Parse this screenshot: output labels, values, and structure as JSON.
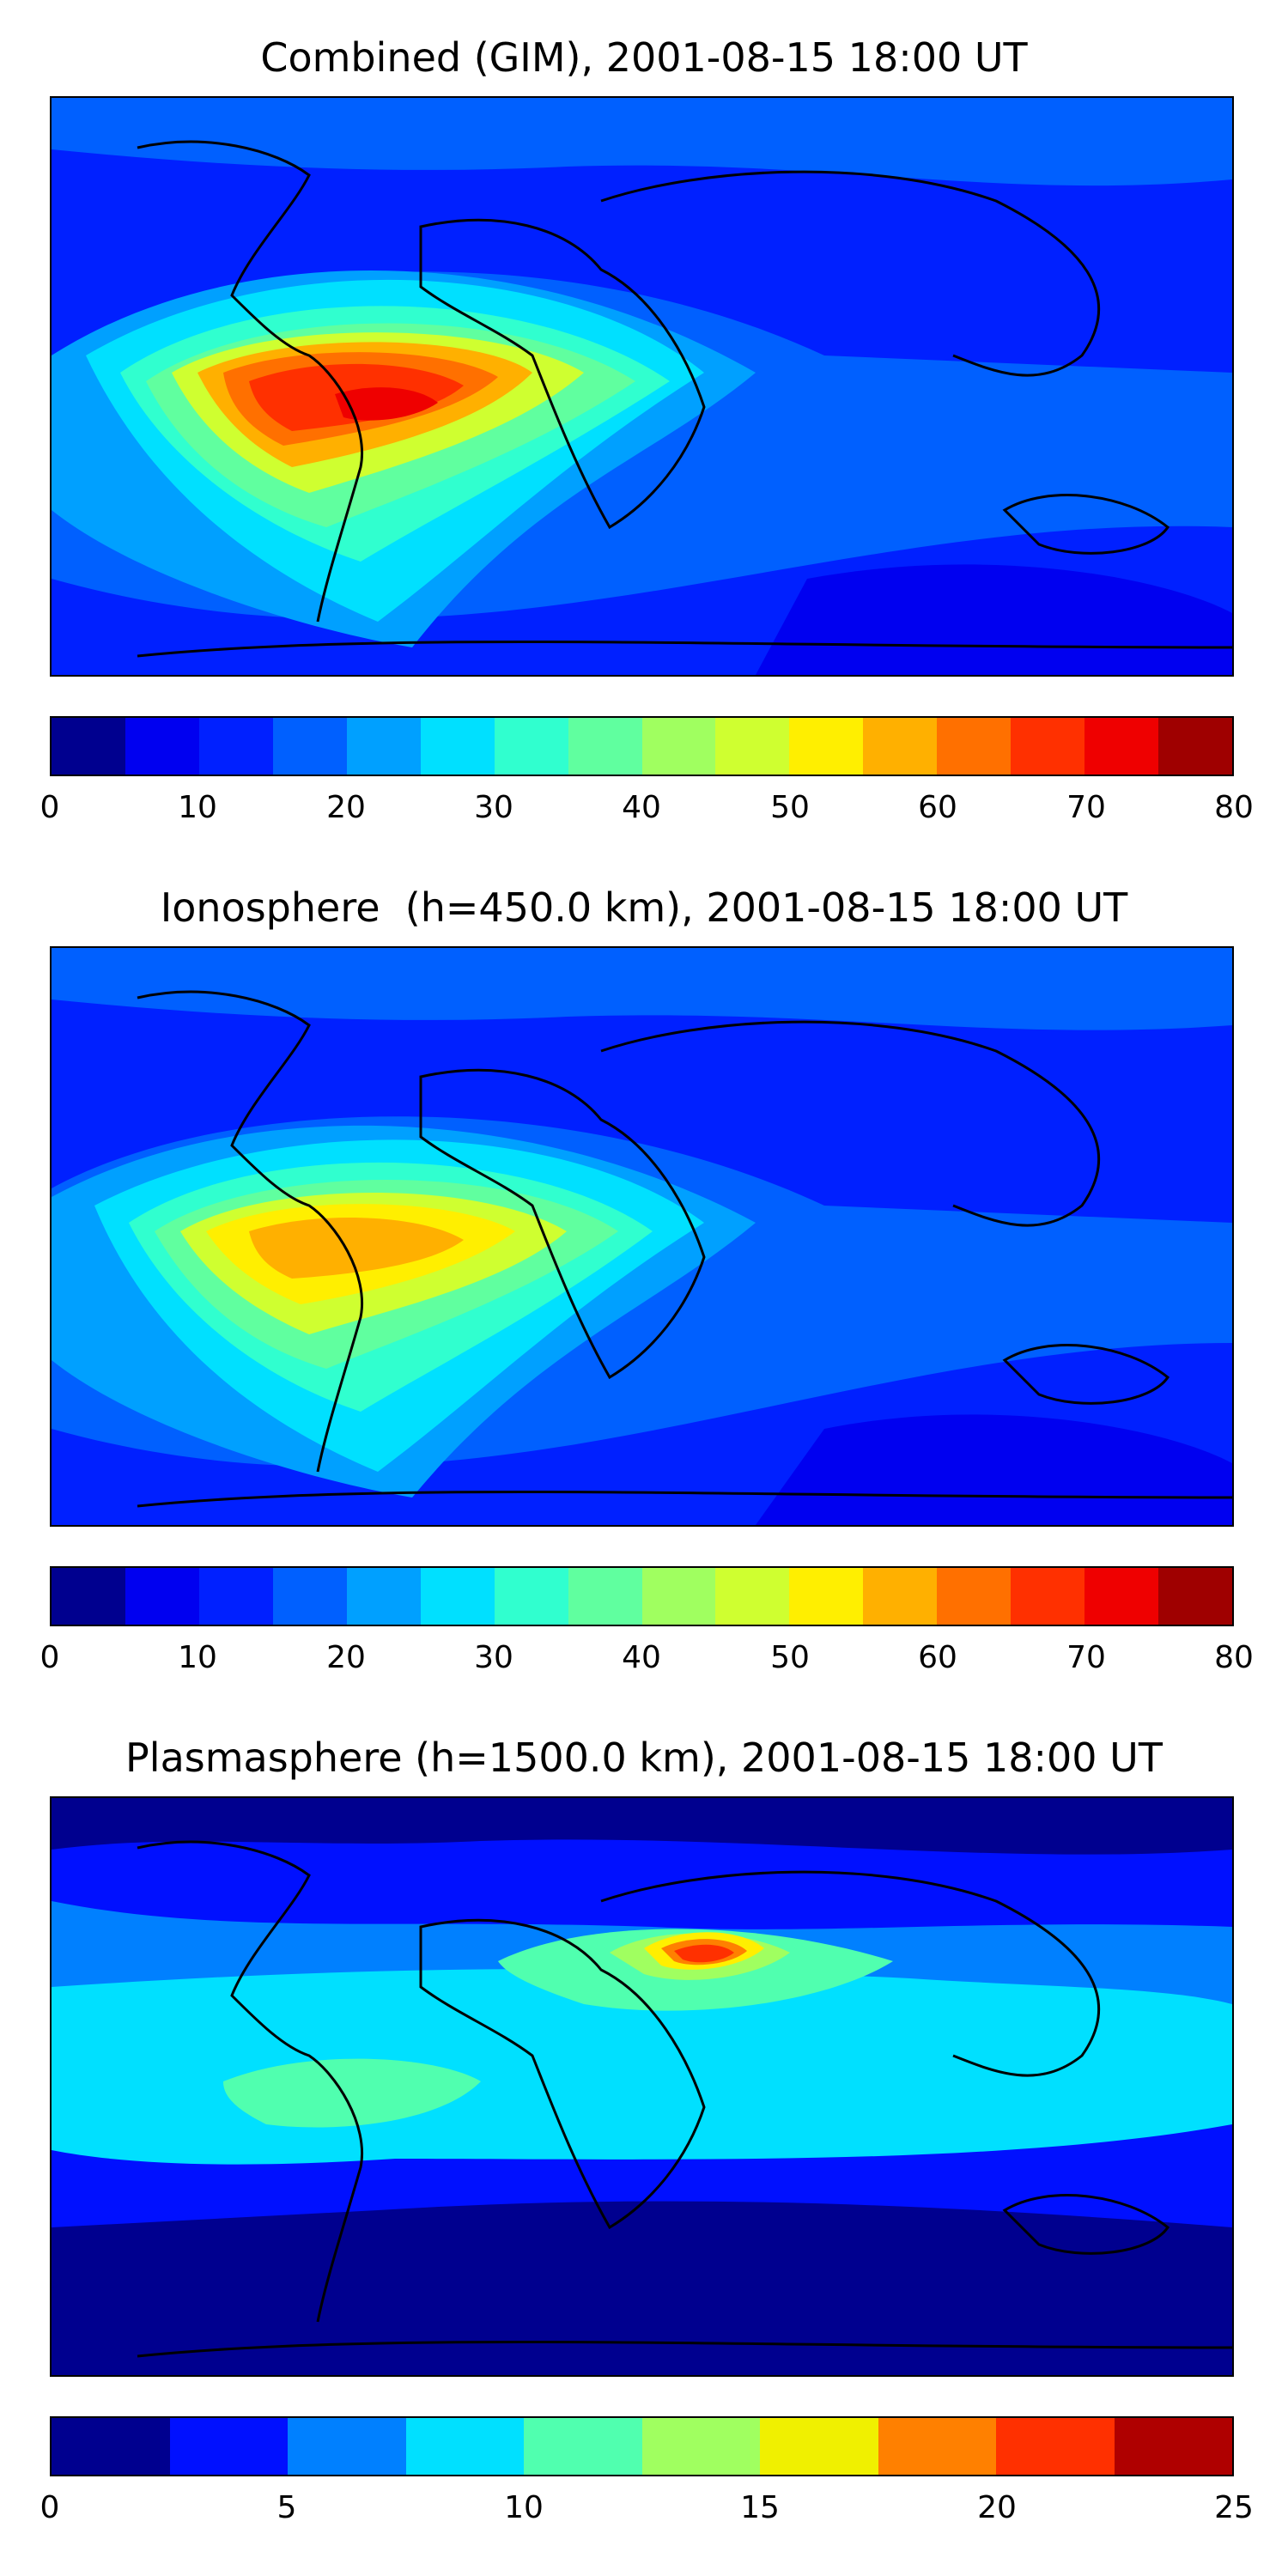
{
  "panels": [
    {
      "title": "Combined (GIM), 2001-08-15 18:00 UT",
      "colorbar": {
        "colors": [
          "#00008f",
          "#0000f0",
          "#0020ff",
          "#0060ff",
          "#00a0ff",
          "#00e0ff",
          "#30ffcf",
          "#60ff9f",
          "#a0ff60",
          "#cfff30",
          "#ffef00",
          "#ffb000",
          "#ff7000",
          "#ff3000",
          "#ef0000",
          "#9f0000"
        ],
        "ticks": [
          "0",
          "10",
          "20",
          "30",
          "40",
          "50",
          "60",
          "70",
          "80"
        ]
      }
    },
    {
      "title": "Ionosphere  (h=450.0 km), 2001-08-15 18:00 UT",
      "colorbar": {
        "colors": [
          "#00008f",
          "#0000f0",
          "#0020ff",
          "#0060ff",
          "#00a0ff",
          "#00e0ff",
          "#30ffcf",
          "#60ff9f",
          "#a0ff60",
          "#cfff30",
          "#ffef00",
          "#ffb000",
          "#ff7000",
          "#ff3000",
          "#ef0000",
          "#9f0000"
        ],
        "ticks": [
          "0",
          "10",
          "20",
          "30",
          "40",
          "50",
          "60",
          "70",
          "80"
        ]
      }
    },
    {
      "title": "Plasmasphere (h=1500.0 km), 2001-08-15 18:00 UT",
      "colorbar": {
        "colors": [
          "#00008f",
          "#0010ff",
          "#0080ff",
          "#00e0ff",
          "#50ffaf",
          "#a0ff60",
          "#f0f000",
          "#ff8000",
          "#ff3000",
          "#af0000"
        ],
        "ticks": [
          "0",
          "5",
          "10",
          "15",
          "20",
          "25"
        ]
      }
    }
  ]
}
